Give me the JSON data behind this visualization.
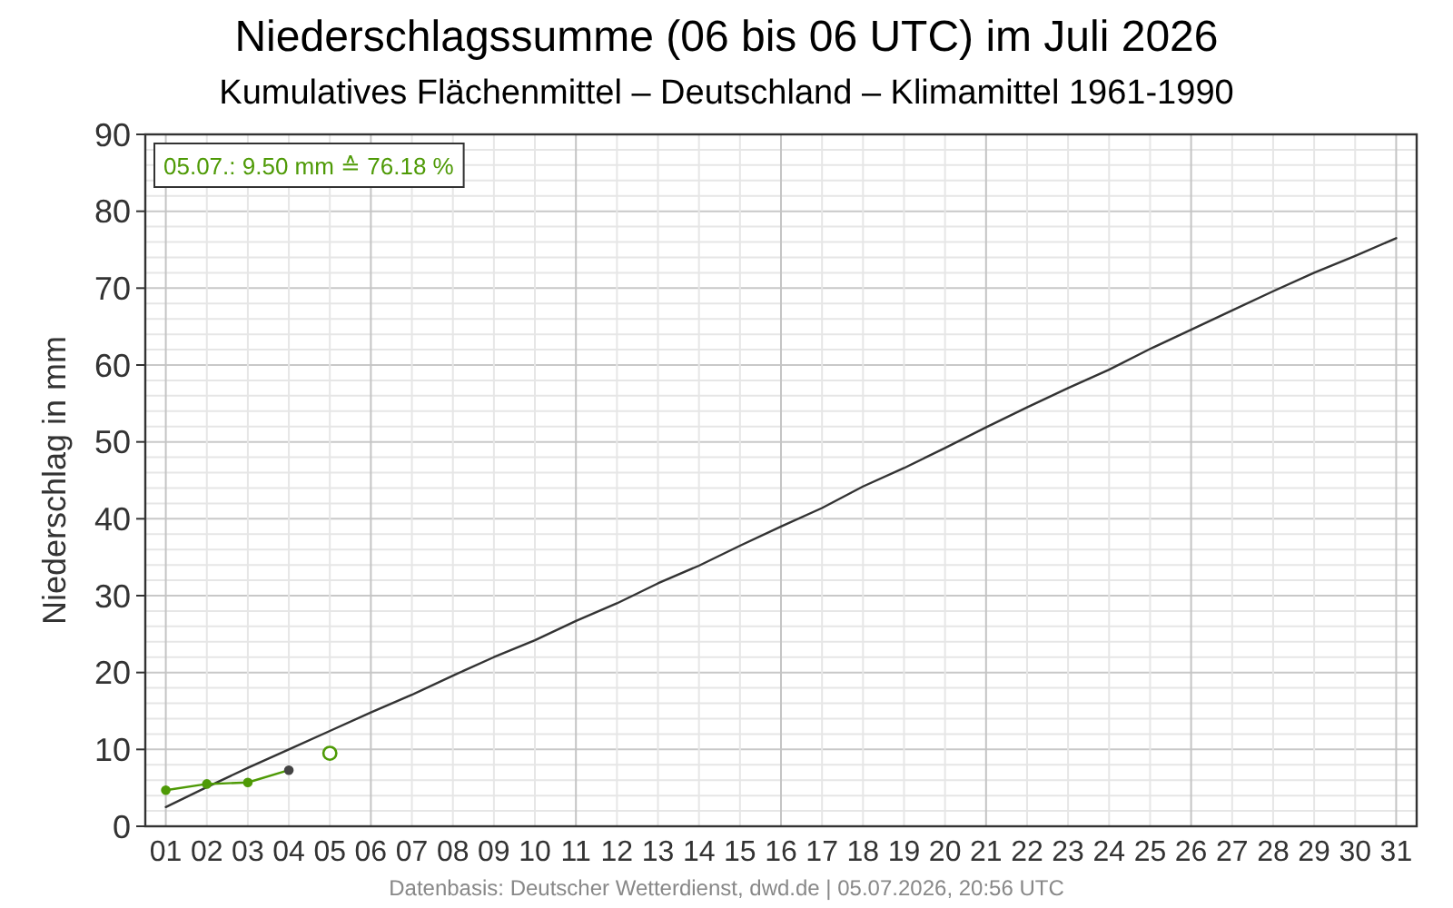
{
  "chart_data": {
    "type": "line",
    "title": "Niederschlagssumme (06 bis 06 UTC) im Juli 2026",
    "subtitle": "Kumulatives Flächenmittel – Deutschland – Klimamittel 1961-1990",
    "ylabel": "Niederschlag in mm",
    "x": [
      1,
      2,
      3,
      4,
      5,
      6,
      7,
      8,
      9,
      10,
      11,
      12,
      13,
      14,
      15,
      16,
      17,
      18,
      19,
      20,
      21,
      22,
      23,
      24,
      25,
      26,
      27,
      28,
      29,
      30,
      31
    ],
    "xlim": [
      0.5,
      31.5
    ],
    "xticks": [
      {
        "value": 1,
        "label": "01"
      },
      {
        "value": 2,
        "label": "02"
      },
      {
        "value": 3,
        "label": "03"
      },
      {
        "value": 4,
        "label": "04"
      },
      {
        "value": 5,
        "label": "05"
      },
      {
        "value": 6,
        "label": "06"
      },
      {
        "value": 7,
        "label": "07"
      },
      {
        "value": 8,
        "label": "08"
      },
      {
        "value": 9,
        "label": "09"
      },
      10,
      11,
      12,
      13,
      14,
      15,
      16,
      17,
      18,
      19,
      20,
      21,
      22,
      23,
      24,
      25,
      26,
      27,
      28,
      29,
      30,
      31
    ],
    "ylim": [
      0,
      90
    ],
    "yticks": [
      0,
      {
        "value": 2,
        "label": null
      },
      {
        "value": 4,
        "label": null
      },
      {
        "value": 6,
        "label": null
      },
      {
        "value": 8,
        "label": null
      },
      10,
      {
        "value": 12,
        "label": null
      },
      {
        "value": 14,
        "label": null
      },
      {
        "value": 16,
        "label": null
      },
      {
        "value": 18,
        "label": null
      },
      20,
      {
        "value": 22,
        "label": null
      },
      {
        "value": 24,
        "label": null
      },
      {
        "value": 26,
        "label": null
      },
      {
        "value": 28,
        "label": null
      },
      30,
      {
        "value": 32,
        "label": null
      },
      {
        "value": 34,
        "label": null
      },
      {
        "value": 36,
        "label": null
      },
      {
        "value": 38,
        "label": null
      },
      40,
      {
        "value": 42,
        "label": null
      },
      {
        "value": 44,
        "label": null
      },
      {
        "value": 46,
        "label": null
      },
      {
        "value": 48,
        "label": null
      },
      50,
      {
        "value": 52,
        "label": null
      },
      {
        "value": 54,
        "label": null
      },
      {
        "value": 56,
        "label": null
      },
      {
        "value": 58,
        "label": null
      },
      60,
      {
        "value": 62,
        "label": null
      },
      {
        "value": 64,
        "label": null
      },
      {
        "value": 66,
        "label": null
      },
      {
        "value": 68,
        "label": null
      },
      70,
      {
        "value": 72,
        "label": null
      },
      {
        "value": 74,
        "label": null
      },
      {
        "value": 76,
        "label": null
      },
      {
        "value": 78,
        "label": null
      },
      80,
      {
        "value": 82,
        "label": null
      },
      {
        "value": 84,
        "label": null
      },
      {
        "value": 86,
        "label": null
      },
      {
        "value": 88,
        "label": null
      },
      90
    ],
    "grid": true,
    "series": [
      {
        "color": "#333333",
        "marker": "none",
        "values": [
          2.5,
          5.1,
          7.6,
          10.0,
          12.4,
          14.8,
          17.1,
          19.6,
          22.0,
          24.2,
          26.7,
          29.0,
          31.6,
          33.9,
          36.5,
          39.0,
          41.4,
          44.2,
          46.6,
          49.2,
          51.9,
          54.5,
          57.0,
          59.4,
          62.1,
          64.6,
          67.1,
          69.6,
          72.0,
          74.2,
          76.5
        ]
      },
      {
        "color": "#4e9a06",
        "marker": "circle",
        "x": [
          1,
          2,
          3,
          4
        ],
        "values": [
          4.7,
          5.5,
          5.7,
          7.3
        ],
        "colors": [
          "#4e9a06",
          "#4e9a06",
          "#4e9a06",
          "#444444"
        ]
      },
      {
        "type": "scatter",
        "color": "#4e9a06",
        "marker": "circle",
        "x": [
          5
        ],
        "values": [
          9.5
        ]
      }
    ],
    "annotations": [
      "05.07.: 9.50 mm ≙ 76.18 %",
      "Datenbasis: Deutscher Wetterdienst, dwd.de | 05.07.2026, 20:56 UTC"
    ]
  }
}
